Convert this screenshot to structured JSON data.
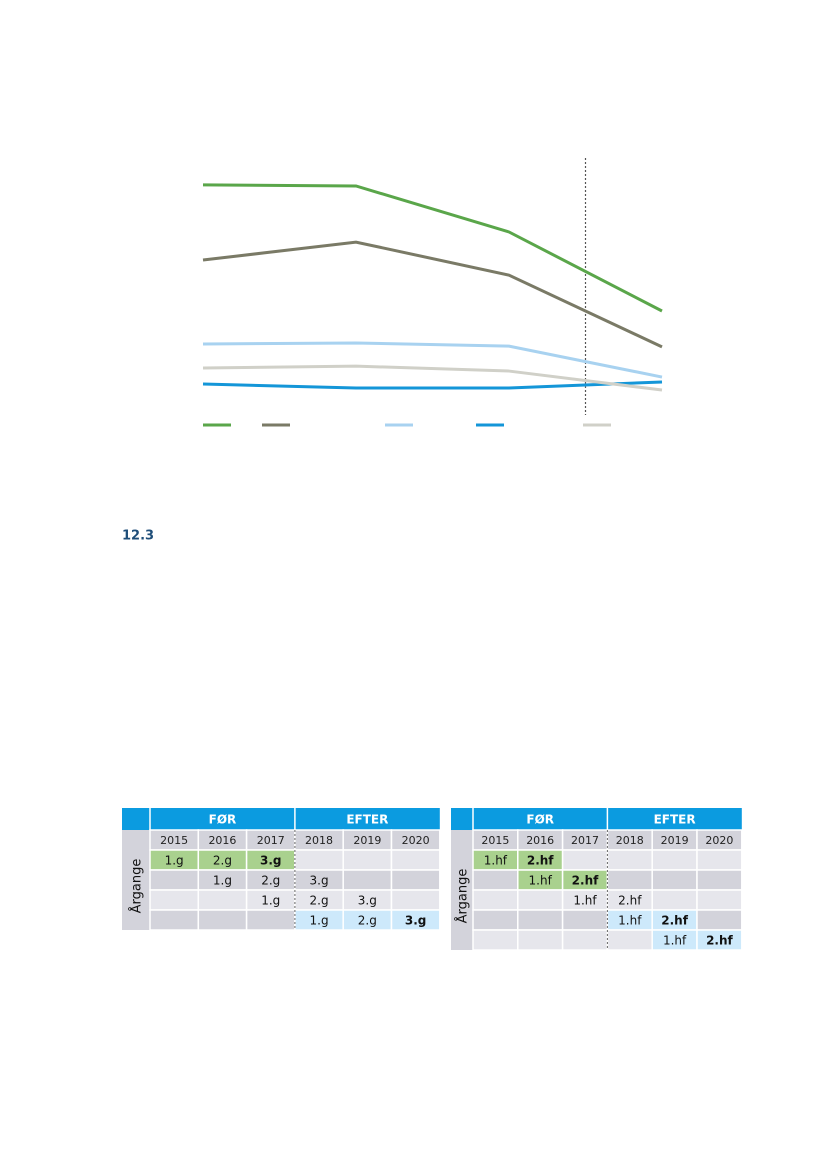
{
  "chart_data": {
    "type": "line",
    "ylim": [
      0,
      100
    ],
    "divider": 2.5,
    "series": [
      {
        "color": "#5aa64a",
        "values": [
          88.5,
          88.1,
          70.4,
          40
        ]
      },
      {
        "color": "#7a7a66",
        "values": [
          59.6,
          66.5,
          53.8,
          26.2
        ]
      },
      {
        "color": "#a8d2f0",
        "values": [
          27.3,
          27.7,
          26.5,
          14.6
        ]
      },
      {
        "color": "#1496d8",
        "values": [
          11.9,
          10.4,
          10.4,
          12.7
        ]
      },
      {
        "color": "#d0d0c8",
        "values": [
          18.1,
          18.8,
          16.9,
          9.6
        ]
      }
    ]
  },
  "heading": "12.3",
  "tables": [
    {
      "groups": [
        "FØR",
        "EFTER"
      ],
      "years": [
        "2015",
        "2016",
        "2017",
        "2018",
        "2019",
        "2020"
      ],
      "row_label": "Årgange",
      "rows": [
        [
          {
            "text": "1.g",
            "fill": "#a9d18e"
          },
          {
            "text": "2.g",
            "fill": "#a9d18e"
          },
          {
            "text": "3.g",
            "fill": "#a9d18e",
            "bold": true
          },
          null,
          null,
          null
        ],
        [
          null,
          {
            "text": "1.g"
          },
          {
            "text": "2.g"
          },
          {
            "text": "3.g"
          },
          null,
          null
        ],
        [
          null,
          null,
          {
            "text": "1.g"
          },
          {
            "text": "2.g"
          },
          {
            "text": "3.g"
          },
          null
        ],
        [
          null,
          null,
          null,
          {
            "text": "1.g",
            "fill": "#cde9fb"
          },
          {
            "text": "2.g",
            "fill": "#cde9fb"
          },
          {
            "text": "3.g",
            "fill": "#cde9fb",
            "bold": true
          }
        ]
      ]
    },
    {
      "groups": [
        "FØR",
        "EFTER"
      ],
      "years": [
        "2015",
        "2016",
        "2017",
        "2018",
        "2019",
        "2020"
      ],
      "row_label": "Årgange",
      "rows": [
        [
          {
            "text": "1.hf",
            "fill": "#a9d18e"
          },
          {
            "text": "2.hf",
            "fill": "#a9d18e",
            "bold": true
          },
          null,
          null,
          null,
          null
        ],
        [
          null,
          {
            "text": "1.hf",
            "fill": "#a9d18e"
          },
          {
            "text": "2.hf",
            "fill": "#a9d18e",
            "bold": true
          },
          null,
          null,
          null
        ],
        [
          null,
          null,
          {
            "text": "1.hf"
          },
          {
            "text": "2.hf"
          },
          null,
          null
        ],
        [
          null,
          null,
          null,
          {
            "text": "1.hf",
            "fill": "#cde9fb"
          },
          {
            "text": "2.hf",
            "fill": "#cde9fb",
            "bold": true
          },
          null
        ],
        [
          null,
          null,
          null,
          null,
          {
            "text": "1.hf",
            "fill": "#cde9fb"
          },
          {
            "text": "2.hf",
            "fill": "#cde9fb",
            "bold": true
          }
        ]
      ]
    }
  ]
}
